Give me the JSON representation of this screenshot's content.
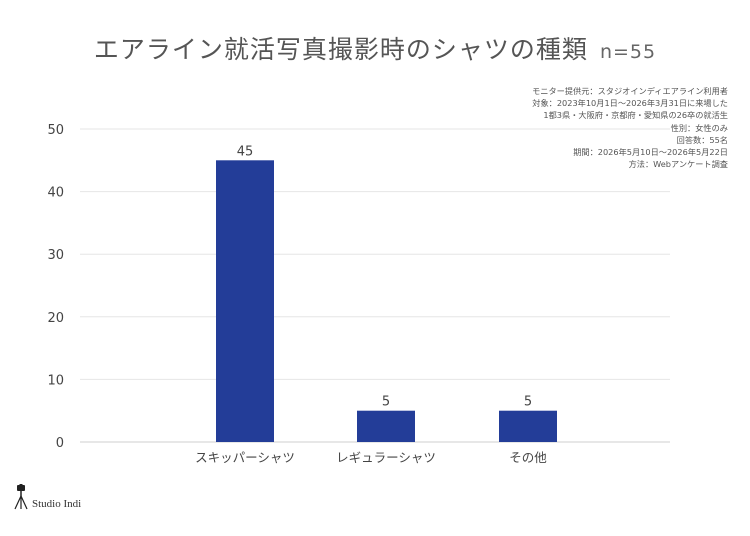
{
  "title": "エアライン就活写真撮影時のシャツの種類",
  "sample_size": "n=55",
  "notes": [
    "モニター提供元：スタジオインディエアライン利用者",
    "対象：2023年10月1日〜2026年3月31日に来場した",
    "1都3県・大阪府・京都府・愛知県の26卒の就活生",
    "性別：女性のみ",
    "回答数：55名",
    "期間：2026年5月10日〜2026年5月22日",
    "方法：Webアンケート調査"
  ],
  "footer": {
    "brand": "Studio Indi",
    "logo_icon": "camera-tripod-icon"
  },
  "colors": {
    "bar": "#233d98",
    "grid": "#e6e6e6",
    "text": "#444444"
  },
  "chart_data": {
    "type": "bar",
    "categories": [
      "スキッパーシャツ",
      "レギュラーシャツ",
      "その他"
    ],
    "values": [
      45,
      5,
      5
    ],
    "data_labels": [
      "45",
      "5",
      "5"
    ],
    "ylim": [
      0,
      50
    ],
    "yticks": [
      0,
      10,
      20,
      30,
      40,
      50
    ],
    "xlabel": "",
    "ylabel": "",
    "grid": true
  }
}
